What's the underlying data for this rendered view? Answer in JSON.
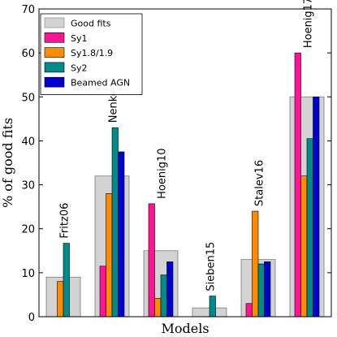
{
  "chart_data": {
    "type": "bar",
    "xlabel": "Models",
    "ylabel": "% of good fits",
    "ylim": [
      0,
      70
    ],
    "yticks": [
      0,
      10,
      20,
      30,
      40,
      50,
      60,
      70
    ],
    "grid": false,
    "legend_placement": "top-left",
    "categories": [
      "Fritz06",
      "Nenkova08",
      "Hoenig10",
      "Sieben15",
      "Stalev16",
      "Hoenig17"
    ],
    "series": [
      {
        "name": "Good fits",
        "color": "#d3d3d3",
        "values": [
          9,
          32,
          15,
          2,
          13,
          50
        ]
      },
      {
        "name": "Sy1",
        "color": "#ff1493",
        "values": [
          0,
          11.5,
          25.7,
          0,
          3,
          60
        ]
      },
      {
        "name": "Sy1.8/1.9",
        "color": "#ff8c00",
        "values": [
          8,
          28,
          4.2,
          0,
          24,
          32
        ]
      },
      {
        "name": "Sy2",
        "color": "#008b8b",
        "values": [
          16.7,
          43,
          9.5,
          4.7,
          12,
          40.5
        ]
      },
      {
        "name": "Beamed AGN",
        "color": "#0000cd",
        "values": [
          0,
          37.5,
          12.5,
          0,
          12.5,
          50
        ]
      }
    ]
  }
}
